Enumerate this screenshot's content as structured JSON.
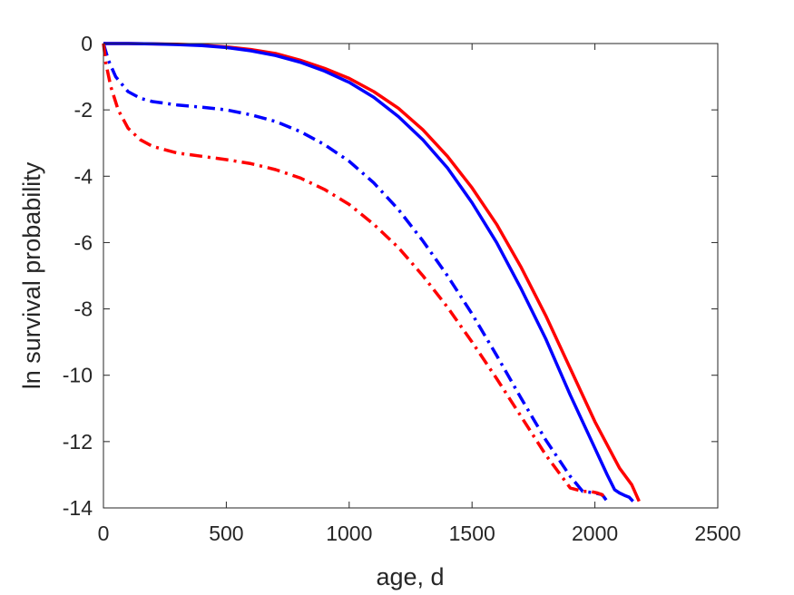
{
  "chart_data": {
    "type": "line",
    "title": "",
    "xlabel": "age, d",
    "ylabel": "ln survival probability",
    "xlim": [
      0,
      2500
    ],
    "ylim": [
      -14,
      0
    ],
    "xticks": [
      "0",
      "500",
      "1000",
      "1500",
      "2000",
      "2500"
    ],
    "yticks": [
      "0",
      "-2",
      "-4",
      "-6",
      "-8",
      "-10",
      "-12",
      "-14"
    ],
    "grid": false,
    "legend": "none",
    "series": [
      {
        "color": "#ff0000",
        "style": "solid",
        "x": [
          0,
          100,
          200,
          300,
          400,
          500,
          600,
          700,
          800,
          900,
          1000,
          1100,
          1200,
          1300,
          1400,
          1500,
          1600,
          1700,
          1800,
          1900,
          2000,
          2100,
          2150,
          2180
        ],
        "y": [
          0,
          0,
          -0.01,
          -0.02,
          -0.05,
          -0.1,
          -0.18,
          -0.3,
          -0.5,
          -0.75,
          -1.05,
          -1.45,
          -1.95,
          -2.6,
          -3.4,
          -4.35,
          -5.45,
          -6.75,
          -8.2,
          -9.8,
          -11.4,
          -12.8,
          -13.3,
          -13.8
        ]
      },
      {
        "color": "#0000ff",
        "style": "solid",
        "x": [
          0,
          100,
          200,
          300,
          400,
          500,
          600,
          700,
          800,
          900,
          1000,
          1100,
          1200,
          1300,
          1400,
          1500,
          1600,
          1700,
          1800,
          1900,
          2000,
          2050,
          2080,
          2100,
          2120,
          2140,
          2155
        ],
        "y": [
          0,
          0,
          -0.01,
          -0.03,
          -0.06,
          -0.12,
          -0.22,
          -0.36,
          -0.56,
          -0.83,
          -1.17,
          -1.62,
          -2.2,
          -2.9,
          -3.75,
          -4.8,
          -6.0,
          -7.4,
          -8.9,
          -10.6,
          -12.2,
          -13.0,
          -13.45,
          -13.55,
          -13.62,
          -13.68,
          -13.8
        ]
      },
      {
        "color": "#0000ff",
        "style": "dashdot",
        "x": [
          0,
          20,
          50,
          100,
          150,
          200,
          300,
          400,
          500,
          600,
          700,
          800,
          900,
          1000,
          1100,
          1200,
          1300,
          1400,
          1500,
          1600,
          1700,
          1800,
          1900,
          1950,
          2000,
          2030,
          2050
        ],
        "y": [
          0,
          -0.5,
          -1.0,
          -1.45,
          -1.65,
          -1.75,
          -1.85,
          -1.92,
          -2.0,
          -2.15,
          -2.35,
          -2.65,
          -3.05,
          -3.55,
          -4.2,
          -5.0,
          -5.95,
          -7.0,
          -8.15,
          -9.4,
          -10.7,
          -11.95,
          -13.05,
          -13.5,
          -13.55,
          -13.6,
          -13.8
        ]
      },
      {
        "color": "#ff0000",
        "style": "dashdot",
        "x": [
          0,
          10,
          30,
          60,
          100,
          150,
          200,
          300,
          400,
          500,
          600,
          700,
          800,
          900,
          1000,
          1100,
          1200,
          1300,
          1400,
          1500,
          1600,
          1700,
          1800,
          1900,
          1950,
          1980,
          2010,
          2030,
          2040
        ],
        "y": [
          0,
          -0.6,
          -1.3,
          -2.0,
          -2.55,
          -2.9,
          -3.1,
          -3.3,
          -3.4,
          -3.5,
          -3.62,
          -3.8,
          -4.05,
          -4.4,
          -4.85,
          -5.45,
          -6.15,
          -7.0,
          -7.95,
          -9.0,
          -10.1,
          -11.25,
          -12.4,
          -13.4,
          -13.5,
          -13.5,
          -13.55,
          -13.6,
          -13.8
        ]
      }
    ]
  }
}
